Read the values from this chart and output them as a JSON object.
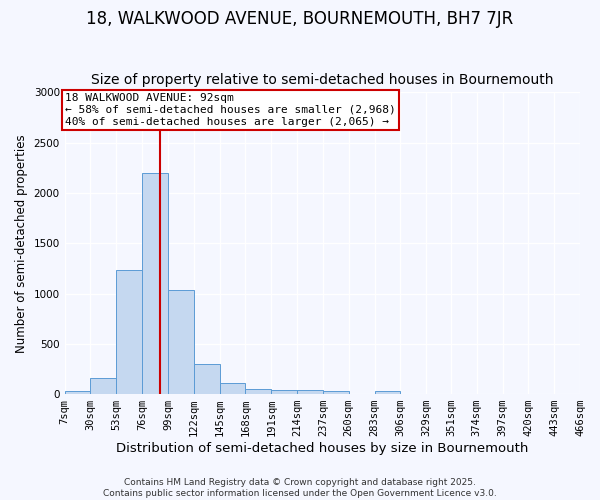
{
  "title": "18, WALKWOOD AVENUE, BOURNEMOUTH, BH7 7JR",
  "subtitle": "Size of property relative to semi-detached houses in Bournemouth",
  "xlabel": "Distribution of semi-detached houses by size in Bournemouth",
  "ylabel": "Number of semi-detached properties",
  "bin_labels": [
    "7sqm",
    "30sqm",
    "53sqm",
    "76sqm",
    "99sqm",
    "122sqm",
    "145sqm",
    "168sqm",
    "191sqm",
    "214sqm",
    "237sqm",
    "260sqm",
    "283sqm",
    "306sqm",
    "329sqm",
    "351sqm",
    "374sqm",
    "397sqm",
    "420sqm",
    "443sqm",
    "466sqm"
  ],
  "bin_edges": [
    7,
    30,
    53,
    76,
    99,
    122,
    145,
    168,
    191,
    214,
    237,
    260,
    283,
    306,
    329,
    351,
    374,
    397,
    420,
    443,
    466
  ],
  "bar_heights": [
    30,
    160,
    1230,
    2200,
    1030,
    295,
    115,
    55,
    45,
    40,
    35,
    0,
    35,
    0,
    0,
    0,
    0,
    0,
    0,
    0
  ],
  "bar_color": "#c5d8f0",
  "bar_edge_color": "#5b9bd5",
  "property_size": 92,
  "red_line_color": "#cc0000",
  "annotation_line1": "18 WALKWOOD AVENUE: 92sqm",
  "annotation_line2": "← 58% of semi-detached houses are smaller (2,968)",
  "annotation_line3": "40% of semi-detached houses are larger (2,065) →",
  "annotation_box_color": "#ffffff",
  "annotation_box_edge": "#cc0000",
  "ylim": [
    0,
    3000
  ],
  "yticks": [
    0,
    500,
    1000,
    1500,
    2000,
    2500,
    3000
  ],
  "bg_color": "#f5f7ff",
  "plot_bg_color": "#f5f7ff",
  "grid_color": "#ffffff",
  "footer": "Contains HM Land Registry data © Crown copyright and database right 2025.\nContains public sector information licensed under the Open Government Licence v3.0.",
  "title_fontsize": 12,
  "subtitle_fontsize": 10,
  "xlabel_fontsize": 9.5,
  "ylabel_fontsize": 8.5,
  "tick_fontsize": 7.5,
  "annotation_fontsize": 8,
  "footer_fontsize": 6.5
}
